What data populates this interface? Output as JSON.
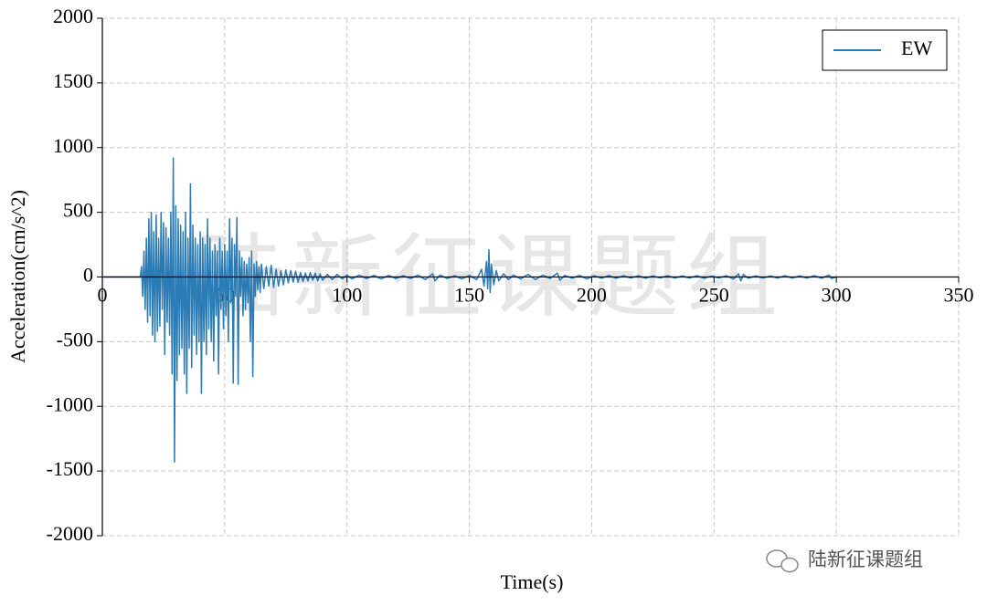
{
  "chart_data": {
    "type": "line",
    "x_label": "Time(s)",
    "y_label": "Acceleration(cm/s^2)",
    "annotations": [
      "陆新征课题组",
      "陆新征课题组"
    ],
    "xlim": [
      0,
      350
    ],
    "xticks": [
      0,
      50,
      100,
      150,
      200,
      250,
      300,
      350
    ],
    "ylim": [
      -2000,
      2000
    ],
    "yticks": [
      -2000,
      -1500,
      -1000,
      -500,
      0,
      500,
      1000,
      1500,
      2000
    ],
    "grid": true,
    "legend": "upper right",
    "x": [
      0,
      15.5,
      16,
      16.5,
      17,
      17.5,
      18,
      18.5,
      19,
      19.5,
      20,
      20.5,
      21,
      21.5,
      22,
      22.5,
      23,
      23.5,
      24,
      24.5,
      25,
      25.5,
      26,
      26.5,
      27,
      27.5,
      28,
      28.5,
      29,
      29.5,
      30,
      30.5,
      31,
      31.5,
      32,
      32.5,
      33,
      33.5,
      34,
      34.5,
      35,
      35.5,
      36,
      36.5,
      37,
      37.5,
      38,
      38.5,
      39,
      39.5,
      40,
      40.5,
      41,
      41.5,
      42,
      42.5,
      43,
      43.5,
      44,
      44.5,
      45,
      45.5,
      46,
      46.5,
      47,
      47.5,
      48,
      48.5,
      49,
      49.5,
      50,
      50.5,
      51,
      51.5,
      52,
      52.5,
      53,
      53.5,
      54,
      54.5,
      55,
      55.5,
      56,
      56.5,
      57,
      57.5,
      58,
      58.5,
      59,
      59.5,
      60,
      60.5,
      61,
      61.5,
      62,
      62.5,
      63,
      63.5,
      64,
      64.5,
      65,
      66,
      67,
      68,
      69,
      70,
      71,
      72,
      73,
      74,
      75,
      76,
      77,
      78,
      79,
      80,
      81,
      82,
      83,
      84,
      85,
      86,
      87,
      88,
      89,
      90,
      92,
      94,
      96,
      98,
      100,
      102,
      105,
      108,
      111,
      114,
      117,
      120,
      123,
      126,
      129,
      132,
      135,
      136,
      138,
      141,
      144,
      147,
      150,
      153,
      155,
      156,
      157,
      157.5,
      158,
      158.5,
      159,
      160,
      161,
      162,
      164,
      166,
      168,
      171,
      174,
      177,
      180,
      183,
      186,
      187,
      189,
      192,
      195,
      198,
      201,
      204,
      207,
      210,
      213,
      216,
      219,
      222,
      225,
      228,
      231,
      234,
      237,
      240,
      243,
      246,
      249,
      252,
      255,
      258,
      260,
      261,
      262,
      264,
      267,
      270,
      273,
      276,
      279,
      282,
      285,
      288,
      291,
      294,
      297,
      298,
      300
    ],
    "series": [
      {
        "name": "EW",
        "color": "#2b7bb4",
        "values": [
          0,
          0,
          80,
          -150,
          200,
          -250,
          300,
          -350,
          450,
          -300,
          500,
          -450,
          350,
          -500,
          480,
          -420,
          300,
          -380,
          500,
          -250,
          420,
          -600,
          380,
          -350,
          300,
          -450,
          500,
          -750,
          920,
          -1430,
          550,
          -800,
          450,
          -600,
          400,
          -550,
          350,
          -750,
          500,
          -900,
          300,
          -550,
          720,
          -700,
          400,
          -450,
          300,
          -600,
          250,
          -500,
          350,
          -900,
          300,
          -500,
          250,
          -600,
          450,
          -400,
          300,
          -500,
          200,
          -650,
          250,
          -300,
          200,
          -750,
          300,
          -250,
          200,
          -400,
          250,
          -300,
          200,
          -500,
          450,
          -200,
          300,
          -820,
          250,
          -150,
          460,
          -830,
          200,
          -150,
          150,
          -300,
          120,
          -250,
          100,
          -200,
          150,
          -500,
          200,
          -770,
          100,
          -150,
          120,
          -100,
          80,
          -120,
          100,
          -90,
          80,
          -70,
          90,
          -80,
          60,
          -70,
          50,
          -60,
          55,
          -45,
          50,
          -40,
          45,
          -40,
          35,
          -35,
          30,
          -30,
          35,
          -25,
          30,
          -30,
          25,
          -25,
          20,
          -20,
          20,
          -15,
          15,
          -15,
          15,
          -12,
          12,
          -15,
          12,
          -12,
          10,
          -12,
          15,
          -20,
          25,
          -30,
          15,
          -12,
          10,
          -15,
          12,
          -20,
          60,
          -70,
          120,
          -90,
          210,
          -120,
          100,
          -60,
          50,
          -30,
          25,
          -20,
          15,
          -15,
          20,
          -20,
          15,
          -12,
          30,
          -25,
          12,
          -10,
          12,
          -15,
          10,
          -10,
          12,
          -10,
          10,
          -8,
          10,
          -10,
          8,
          -8,
          10,
          -8,
          8,
          -8,
          10,
          -10,
          8,
          -8,
          10,
          -15,
          25,
          -30,
          20,
          -10,
          8,
          -8,
          8,
          -8,
          10,
          -8,
          8,
          -8,
          10,
          -10,
          15,
          -12,
          0
        ]
      }
    ]
  }
}
